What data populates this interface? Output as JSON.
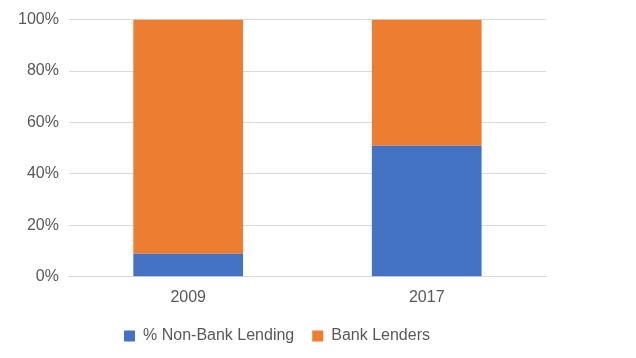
{
  "chart_data": {
    "type": "bar",
    "categories": [
      "2009",
      "2017"
    ],
    "series": [
      {
        "name": "% Non-Bank Lending",
        "color": "#4472c4",
        "values": [
          9,
          51
        ]
      },
      {
        "name": "Bank Lenders",
        "color": "#ed7d31",
        "values": [
          91,
          49
        ]
      }
    ],
    "stacked": true,
    "ylim": [
      0,
      100
    ],
    "yticks": [
      {
        "value": 0,
        "label": "0%"
      },
      {
        "value": 20,
        "label": "20%"
      },
      {
        "value": 40,
        "label": "40%"
      },
      {
        "value": 60,
        "label": "60%"
      },
      {
        "value": 80,
        "label": "80%"
      },
      {
        "value": 100,
        "label": "100%"
      }
    ],
    "grid": true,
    "legend": "bottom"
  }
}
